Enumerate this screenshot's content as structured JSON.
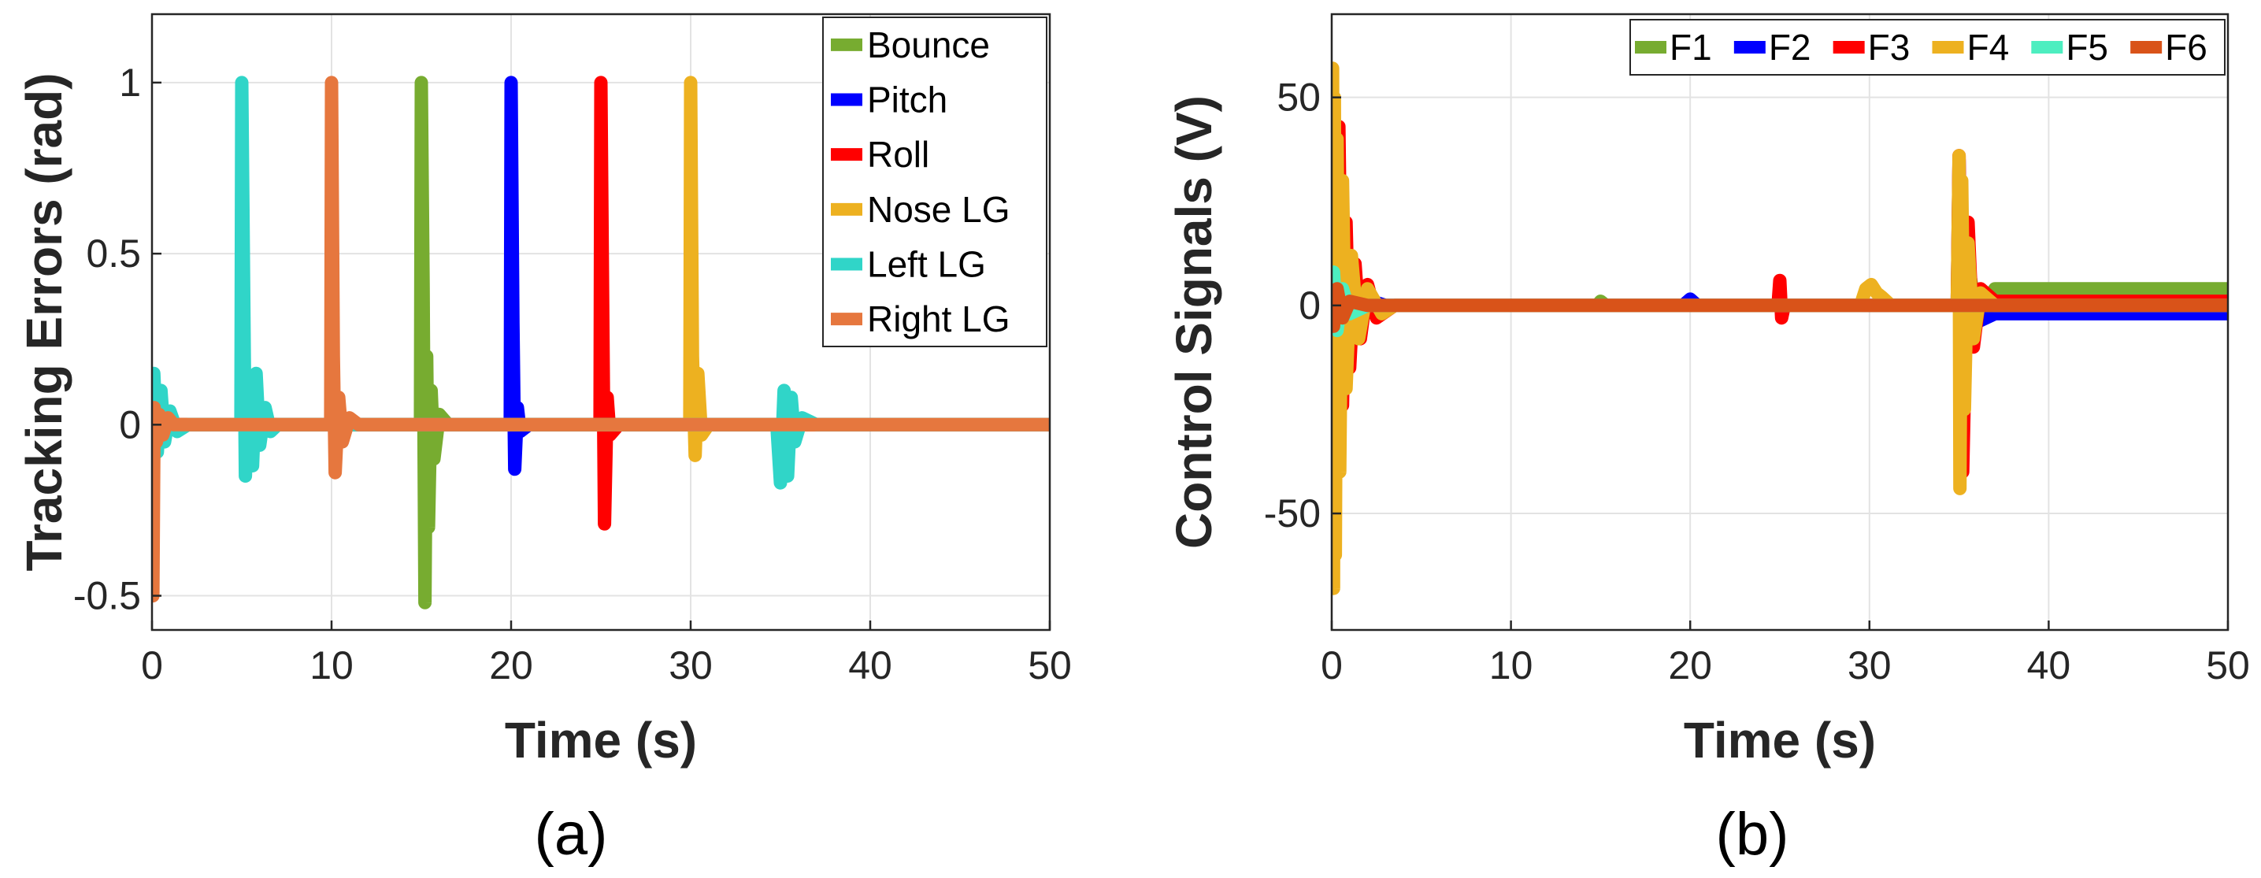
{
  "chart_data": [
    {
      "type": "line",
      "caption": "(a)",
      "xlabel": "Time (s)",
      "ylabel": "Tracking Errors (rad)",
      "xlim": [
        0,
        50
      ],
      "ylim": [
        -0.6,
        1.2
      ],
      "xticks": [
        0,
        10,
        20,
        30,
        40,
        50
      ],
      "xtick_labels": [
        "0",
        "10",
        "20",
        "30",
        "40",
        "50"
      ],
      "yticks": [
        -0.5,
        0,
        0.5,
        1
      ],
      "ytick_labels": [
        "-0.5",
        "0",
        "0.5",
        "1"
      ],
      "grid": true,
      "legend_position": "top-right",
      "series": [
        {
          "name": "Bounce",
          "color": "#77AC30",
          "x": [
            0,
            14.95,
            15,
            15.1,
            15.2,
            15.3,
            15.4,
            15.55,
            15.7,
            16,
            16.5,
            50
          ],
          "y": [
            0,
            0,
            1.0,
            0.4,
            -0.52,
            0.2,
            -0.3,
            0.1,
            -0.1,
            0.03,
            0,
            0
          ]
        },
        {
          "name": "Pitch",
          "color": "#0000FF",
          "x": [
            0,
            19.95,
            20,
            20.1,
            20.2,
            20.35,
            20.5,
            21,
            50
          ],
          "y": [
            0,
            0,
            1.0,
            0.3,
            -0.13,
            0.05,
            -0.02,
            0,
            0
          ]
        },
        {
          "name": "Roll",
          "color": "#FF0000",
          "x": [
            0,
            24.95,
            25,
            25.1,
            25.2,
            25.35,
            25.5,
            26,
            50
          ],
          "y": [
            0,
            0,
            1.0,
            0.35,
            -0.29,
            0.08,
            -0.03,
            0,
            0
          ]
        },
        {
          "name": "Nose LG",
          "color": "#EDB120",
          "x": [
            0,
            29.95,
            30,
            30.1,
            30.25,
            30.4,
            30.6,
            31,
            50
          ],
          "y": [
            0,
            0,
            1.0,
            0.2,
            -0.09,
            0.15,
            -0.03,
            0,
            0
          ]
        },
        {
          "name": "Left LG",
          "color": "#30D5C8",
          "x": [
            0,
            0.1,
            0.3,
            0.5,
            0.7,
            1,
            1.4,
            2,
            4.95,
            5,
            5.2,
            5.4,
            5.6,
            5.8,
            6,
            6.3,
            6.6,
            7,
            34.8,
            35,
            35.2,
            35.4,
            35.6,
            35.8,
            36.2,
            37,
            50
          ],
          "y": [
            0,
            0.15,
            -0.08,
            0.1,
            -0.05,
            0.04,
            -0.02,
            0,
            0,
            1.0,
            -0.15,
            0.13,
            -0.12,
            0.15,
            -0.06,
            0.05,
            -0.02,
            0,
            0,
            -0.17,
            0.1,
            -0.15,
            0.08,
            -0.05,
            0.02,
            0,
            0
          ]
        },
        {
          "name": "Right LG",
          "color": "#E6773E",
          "x": [
            0,
            0.05,
            0.12,
            0.25,
            0.4,
            0.6,
            0.9,
            1.2,
            9.95,
            10,
            10.1,
            10.2,
            10.4,
            10.6,
            11,
            11.5,
            50
          ],
          "y": [
            0,
            -0.5,
            0.05,
            -0.05,
            0.03,
            -0.03,
            0.02,
            0,
            0,
            1.0,
            0.2,
            -0.14,
            0.08,
            -0.05,
            0.02,
            0,
            0
          ]
        }
      ]
    },
    {
      "type": "line",
      "caption": "(b)",
      "xlabel": "Time (s)",
      "ylabel": "Control Signals (V)",
      "xlim": [
        0,
        50
      ],
      "ylim": [
        -78,
        70
      ],
      "xticks": [
        0,
        10,
        20,
        30,
        40,
        50
      ],
      "xtick_labels": [
        "0",
        "10",
        "20",
        "30",
        "40",
        "50"
      ],
      "yticks": [
        -50,
        0,
        50
      ],
      "ytick_labels": [
        "-50",
        "0",
        "50"
      ],
      "grid": true,
      "legend_position": "top",
      "series": [
        {
          "name": "F1",
          "color": "#77AC30",
          "x": [
            0,
            0.1,
            0.4,
            0.8,
            1.5,
            3,
            14.8,
            15,
            15.3,
            34.9,
            35,
            35.2,
            35.5,
            36,
            37,
            50
          ],
          "y": [
            0,
            10,
            -5,
            3,
            -1,
            0,
            0,
            1,
            0,
            0,
            20,
            -15,
            10,
            -3,
            4,
            4
          ]
        },
        {
          "name": "F2",
          "color": "#0000FF",
          "x": [
            0,
            0.1,
            0.3,
            0.7,
            1.5,
            3,
            19.6,
            20,
            20.4,
            34.9,
            35,
            35.2,
            35.5,
            36,
            37,
            50
          ],
          "y": [
            0,
            -25,
            15,
            -6,
            2,
            0,
            0,
            1.5,
            0,
            0,
            35,
            -20,
            8,
            -4,
            -2,
            -2
          ]
        },
        {
          "name": "F3",
          "color": "#FF0000",
          "x": [
            0,
            0.2,
            0.4,
            0.6,
            0.8,
            1,
            1.3,
            1.6,
            2,
            2.5,
            3.5,
            24.9,
            25,
            25.1,
            25.25,
            34.9,
            35,
            35.2,
            35.5,
            35.8,
            36.2,
            37,
            50
          ],
          "y": [
            0,
            -30,
            43,
            -24,
            20,
            -15,
            10,
            -8,
            5,
            -3,
            0,
            0,
            6,
            -3,
            0,
            0,
            36,
            -40,
            20,
            -10,
            4,
            1,
            1
          ]
        },
        {
          "name": "F4",
          "color": "#EDB120",
          "x": [
            0,
            0.05,
            0.1,
            0.15,
            0.2,
            0.3,
            0.45,
            0.6,
            0.8,
            1.1,
            1.5,
            2,
            2.8,
            3.5,
            29.5,
            29.8,
            30.1,
            30.4,
            30.7,
            31.2,
            34.9,
            35,
            35.05,
            35.15,
            35.3,
            35.5,
            35.8,
            36.2,
            37,
            50
          ],
          "y": [
            0,
            57,
            -68,
            50,
            -60,
            40,
            -40,
            30,
            -20,
            12,
            -8,
            4,
            -2,
            0,
            0,
            4,
            5,
            3,
            2,
            0,
            0,
            36,
            -44,
            30,
            -25,
            15,
            -8,
            3,
            0,
            0
          ]
        },
        {
          "name": "F5",
          "color": "#4DEEC0",
          "x": [
            0,
            0.1,
            0.3,
            0.6,
            1,
            2,
            50
          ],
          "y": [
            0,
            8,
            -6,
            4,
            -2,
            0,
            0
          ]
        },
        {
          "name": "F6",
          "color": "#D95319",
          "x": [
            0,
            0.1,
            0.3,
            0.6,
            1,
            2,
            50
          ],
          "y": [
            0,
            -5,
            4,
            -3,
            1,
            0,
            0
          ]
        }
      ]
    }
  ]
}
